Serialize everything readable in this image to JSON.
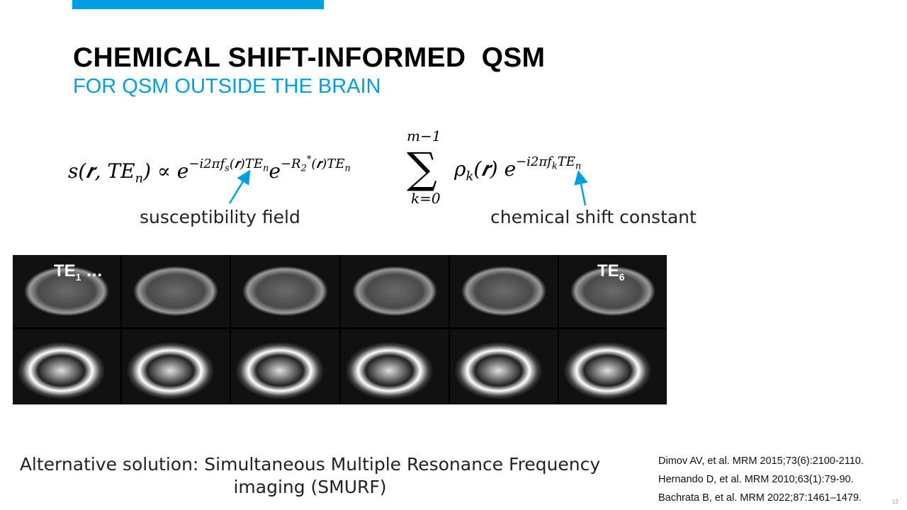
{
  "slide": {
    "title": "CHEMICAL SHIFT-INFORMED  QSM",
    "subtitle": "FOR QSM OUTSIDE THE BRAIN",
    "accent_color": "#009fe3",
    "formula": {
      "lhs": "s(𝒓, TE",
      "lhs_sub": "n",
      "lhs_end": ") ∝ e",
      "exp1": "−i2πf",
      "exp1_sub": "s",
      "exp1_end": "(𝒓)TE",
      "exp1_n": "n",
      "e2": "e",
      "exp2": "−R",
      "exp2_sub": "2",
      "exp2_star": "*",
      "exp2_end": "(𝒓)TE",
      "exp2_n": "n",
      "sum_symbol": "∑",
      "sum_top": "m−1",
      "sum_bottom": "k=0",
      "rho": "ρ",
      "rho_sub": "k",
      "rho_end": "(𝒓) e",
      "exp3": "−i2πf",
      "exp3_sub": "k",
      "exp3_end": "TE",
      "exp3_n": "n"
    },
    "annotations": {
      "left": "susceptibility field",
      "right": "chemical shift constant"
    },
    "images": {
      "first_label": "TE",
      "first_sub": "1",
      "first_suffix": " …",
      "last_label": "TE",
      "last_sub": "6"
    },
    "alternative": {
      "line1": "Alternative solution: Simultaneous Multiple Resonance Frequency",
      "line2": "imaging (SMURF)"
    },
    "references": [
      "Dimov AV, et al. MRM 2015;73(6):2100-2110.",
      "Hernando D, et al. MRM 2010;63(1):79-90.",
      "Bachrata B, et al. MRM 2022;87:1461–1479."
    ],
    "page_number": "13"
  }
}
